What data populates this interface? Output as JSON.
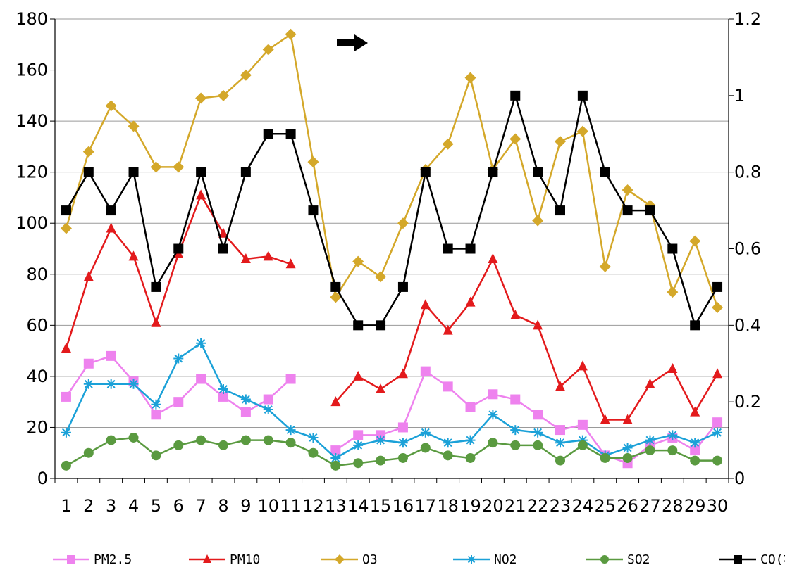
{
  "chart_data": {
    "type": "line",
    "x": [
      "1",
      "2",
      "3",
      "4",
      "5",
      "6",
      "7",
      "8",
      "9",
      "10",
      "11",
      "12",
      "13",
      "14",
      "15",
      "16",
      "17",
      "18",
      "19",
      "20",
      "21",
      "22",
      "23",
      "24",
      "25",
      "26",
      "27",
      "28",
      "29",
      "30"
    ],
    "ylim": [
      0,
      180
    ],
    "yticks": [
      "0",
      "20",
      "40",
      "60",
      "80",
      "100",
      "120",
      "140",
      "160",
      "180"
    ],
    "y2lim": [
      0,
      1.2
    ],
    "y2ticks": [
      "0",
      "0.2",
      "0.4",
      "0.6",
      "0.8",
      "1",
      "1.2"
    ],
    "grid": true,
    "legend_position": "bottom",
    "annotation": "right-arrow",
    "series": [
      {
        "name": "PM2.5",
        "axis": "left",
        "color": "#ee82ee",
        "marker": "square",
        "values": [
          32,
          45,
          48,
          38,
          25,
          30,
          39,
          32,
          26,
          31,
          39,
          null,
          11,
          17,
          17,
          20,
          42,
          36,
          28,
          33,
          31,
          25,
          19,
          21,
          9,
          6,
          13,
          16,
          11,
          22
        ]
      },
      {
        "name": "PM10",
        "axis": "left",
        "color": "#e31a1c",
        "marker": "triangle",
        "values": [
          51,
          79,
          98,
          87,
          61,
          88,
          111,
          96,
          86,
          87,
          84,
          null,
          30,
          40,
          35,
          41,
          68,
          58,
          69,
          86,
          64,
          60,
          36,
          44,
          23,
          23,
          37,
          43,
          26,
          41
        ]
      },
      {
        "name": "O3",
        "axis": "left",
        "color": "#d4a82a",
        "marker": "diamond",
        "values": [
          98,
          128,
          146,
          138,
          122,
          122,
          149,
          150,
          158,
          168,
          174,
          124,
          71,
          85,
          79,
          100,
          121,
          131,
          157,
          121,
          133,
          101,
          132,
          136,
          83,
          113,
          107,
          73,
          93,
          67
        ]
      },
      {
        "name": "NO2",
        "axis": "left",
        "color": "#1ba1d8",
        "marker": "star",
        "values": [
          18,
          37,
          37,
          37,
          29,
          47,
          53,
          35,
          31,
          27,
          19,
          16,
          8,
          13,
          15,
          14,
          18,
          14,
          15,
          25,
          19,
          18,
          14,
          15,
          9,
          12,
          15,
          17,
          14,
          18
        ]
      },
      {
        "name": "SO2",
        "axis": "left",
        "color": "#5a9a40",
        "marker": "circle",
        "values": [
          5,
          10,
          15,
          16,
          9,
          13,
          15,
          13,
          15,
          15,
          14,
          10,
          5,
          6,
          7,
          8,
          12,
          9,
          8,
          14,
          13,
          13,
          7,
          13,
          8,
          8,
          11,
          11,
          7,
          7
        ]
      },
      {
        "name": "CO(右)",
        "axis": "right",
        "color": "#000000",
        "marker": "square",
        "values": [
          0.7,
          0.8,
          0.7,
          0.8,
          0.5,
          0.6,
          0.8,
          0.6,
          0.8,
          0.9,
          0.9,
          0.7,
          0.5,
          0.4,
          0.4,
          0.5,
          0.8,
          0.6,
          0.6,
          0.8,
          1.0,
          0.8,
          0.7,
          1.0,
          0.8,
          0.7,
          0.7,
          0.6,
          0.4,
          0.5
        ]
      }
    ]
  }
}
